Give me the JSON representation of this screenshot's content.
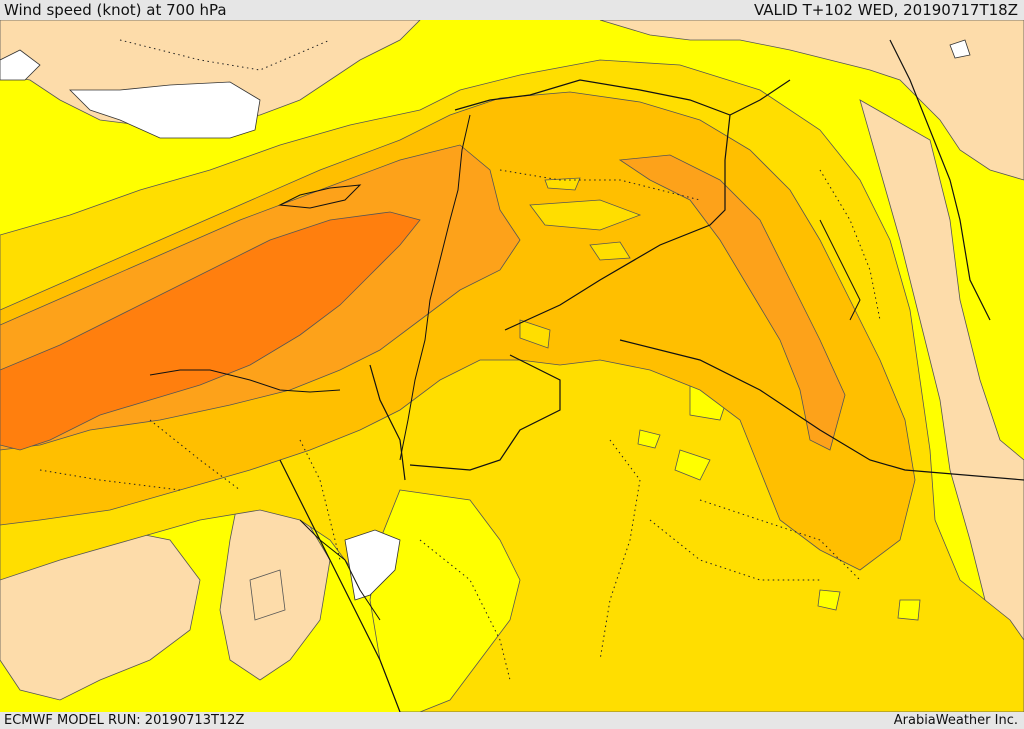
{
  "header": {
    "title": "Wind speed (knot) at 700 hPa",
    "valid_time": "VALID T+102 WED, 20190717T18Z"
  },
  "footer": {
    "model_run": "ECMWF MODEL RUN: 20190713T12Z",
    "credit": "ArabiaWeather Inc."
  },
  "colors": {
    "level_peach": "#fddcaa",
    "level_yellow": "#ffff00",
    "level_gold": "#ffde00",
    "level_amber": "#ffbf00",
    "level_orange": "#fda21a",
    "level_deep_orange": "#ff7f0e",
    "no_data": "#ffffff",
    "border": "#111111"
  }
}
